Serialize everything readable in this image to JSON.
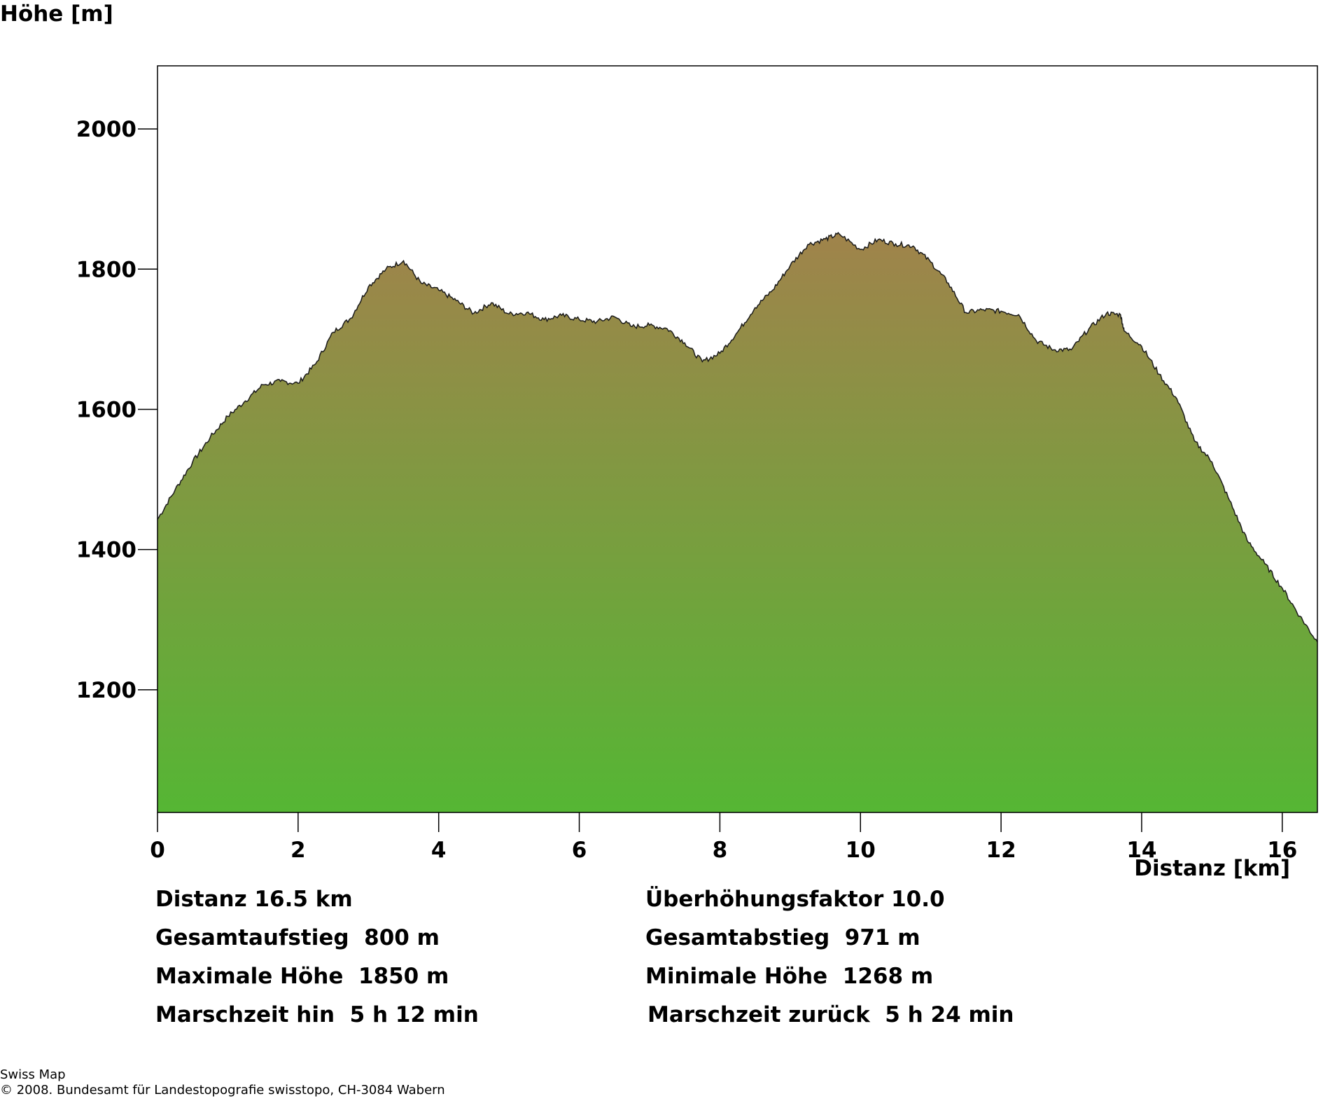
{
  "chart_data": {
    "type": "area",
    "title": "",
    "xlabel": "Distanz [km]",
    "ylabel": "Höhe [m]",
    "xlim": [
      0,
      16.5
    ],
    "ylim": [
      1025,
      2090
    ],
    "xticks": [
      0,
      2,
      4,
      6,
      8,
      10,
      12,
      14,
      16
    ],
    "yticks": [
      1200,
      1400,
      1600,
      1800,
      2000
    ],
    "grid": false,
    "fill_colors": {
      "top": "#a0834b",
      "bottom": "#55b634"
    },
    "line_color": "#1a1a1a",
    "series": [
      {
        "x": [
          0,
          0.25,
          0.5,
          0.75,
          1.0,
          1.25,
          1.5,
          1.75,
          2.0,
          2.25,
          2.5,
          2.75,
          3.0,
          3.25,
          3.5,
          3.75,
          4.0,
          4.25,
          4.5,
          4.75,
          5.0,
          5.25,
          5.5,
          5.75,
          6.0,
          6.25,
          6.5,
          6.75,
          7.0,
          7.25,
          7.5,
          7.75,
          8.0,
          8.25,
          8.5,
          8.75,
          9.0,
          9.25,
          9.5,
          9.7,
          10.0,
          10.25,
          10.5,
          10.75,
          11.0,
          11.25,
          11.5,
          11.75,
          12.0,
          12.25,
          12.5,
          12.75,
          13.0,
          13.25,
          13.5,
          13.7,
          13.75,
          14.0,
          14.25,
          14.5,
          14.75,
          15.0,
          15.25,
          15.5,
          15.75,
          16.0,
          16.25,
          16.5
        ],
        "y": [
          1443,
          1485,
          1525,
          1560,
          1590,
          1612,
          1635,
          1640,
          1637,
          1665,
          1710,
          1730,
          1775,
          1800,
          1812,
          1780,
          1770,
          1755,
          1737,
          1752,
          1736,
          1738,
          1728,
          1734,
          1728,
          1725,
          1732,
          1718,
          1720,
          1715,
          1695,
          1668,
          1680,
          1710,
          1745,
          1770,
          1805,
          1835,
          1843,
          1850,
          1828,
          1842,
          1836,
          1833,
          1810,
          1780,
          1738,
          1742,
          1740,
          1735,
          1698,
          1685,
          1685,
          1715,
          1737,
          1735,
          1712,
          1690,
          1650,
          1615,
          1555,
          1525,
          1470,
          1413,
          1380,
          1345,
          1305,
          1268
        ]
      }
    ]
  },
  "axes": {
    "ylabel": "Höhe [m]",
    "xlabel": "Distanz [km]"
  },
  "stats": {
    "left": [
      "Distanz 16.5 km",
      "Gesamtaufstieg  800 m",
      "Maximale Höhe  1850 m",
      "Marschzeit hin  5 h 12 min"
    ],
    "right": [
      "Überhöhungsfaktor 10.0",
      "Gesamtabstieg  971 m",
      "Minimale Höhe  1268 m",
      "Marschzeit zurück  5 h 24 min"
    ]
  },
  "footer": {
    "line1": "Swiss Map",
    "line2": "© 2008. Bundesamt für Landestopografie swisstopo, CH-3084 Wabern"
  }
}
